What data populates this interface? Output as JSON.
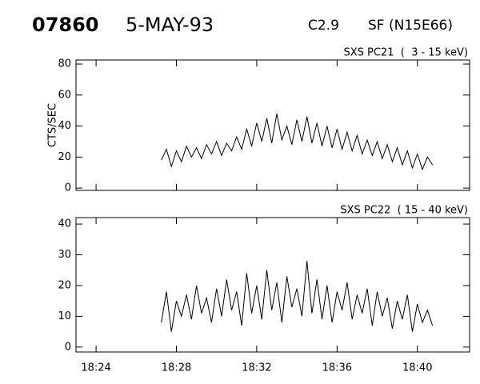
{
  "header": {
    "id": "07860",
    "date": "5-MAY-93",
    "class": "C2.9",
    "location": "SF (N15E66)"
  },
  "chart_data": [
    {
      "type": "line",
      "title": "SXS PC21  (  3 - 15 keV)",
      "ylabel": "CTS/SEC",
      "x": [
        27.25,
        27.5,
        27.75,
        28,
        28.25,
        28.5,
        28.75,
        29,
        29.25,
        29.5,
        29.75,
        30,
        30.25,
        30.5,
        30.75,
        31,
        31.25,
        31.5,
        31.75,
        32,
        32.25,
        32.5,
        32.75,
        33,
        33.25,
        33.5,
        33.75,
        34,
        34.25,
        34.5,
        34.75,
        35,
        35.25,
        35.5,
        35.75,
        36,
        36.25,
        36.5,
        36.75,
        37,
        37.25,
        37.5,
        37.75,
        38,
        38.25,
        38.5,
        38.75,
        39,
        39.25,
        39.5,
        39.75,
        40,
        40.25,
        40.5,
        40.75
      ],
      "series": [
        {
          "color": "#000000",
          "values": [
            18,
            25,
            14,
            24,
            17,
            27,
            20,
            26,
            19,
            28,
            22,
            30,
            21,
            29,
            24,
            33,
            25,
            38,
            27,
            42,
            30,
            45,
            29,
            48,
            31,
            40,
            28,
            44,
            30,
            46,
            29,
            42,
            27,
            40,
            26,
            38,
            25,
            36,
            24,
            34,
            22,
            31,
            21,
            30,
            19,
            28,
            17,
            26,
            15,
            24,
            13,
            22,
            12,
            20,
            15
          ]
        }
      ],
      "xlim": [
        23,
        42.6
      ],
      "ylim": [
        -1.5,
        82.6
      ],
      "yticks": [
        0,
        20,
        40,
        60,
        80
      ]
    },
    {
      "type": "line",
      "title": "SXS PC22  ( 15 - 40 keV)",
      "x": [
        27.25,
        27.5,
        27.75,
        28,
        28.25,
        28.5,
        28.75,
        29,
        29.25,
        29.5,
        29.75,
        30,
        30.25,
        30.5,
        30.75,
        31,
        31.25,
        31.5,
        31.75,
        32,
        32.25,
        32.5,
        32.75,
        33,
        33.25,
        33.5,
        33.75,
        34,
        34.25,
        34.5,
        34.75,
        35,
        35.25,
        35.5,
        35.75,
        36,
        36.25,
        36.5,
        36.75,
        37,
        37.25,
        37.5,
        37.75,
        38,
        38.25,
        38.5,
        38.75,
        39,
        39.25,
        39.5,
        39.75,
        40,
        40.25,
        40.5,
        40.75
      ],
      "series": [
        {
          "color": "#000000",
          "values": [
            8,
            18,
            5,
            15,
            10,
            17,
            9,
            20,
            11,
            16,
            8,
            19,
            10,
            22,
            12,
            18,
            7,
            24,
            11,
            20,
            9,
            25,
            12,
            21,
            8,
            23,
            13,
            19,
            10,
            28,
            11,
            22,
            9,
            20,
            8,
            18,
            12,
            21,
            9,
            17,
            11,
            19,
            7,
            18,
            10,
            16,
            6,
            15,
            9,
            17,
            5,
            14,
            8,
            12,
            7
          ]
        }
      ],
      "xlim": [
        23,
        42.6
      ],
      "ylim": [
        -1.6,
        42.1
      ],
      "yticks": [
        0,
        10,
        20,
        30,
        40
      ],
      "xticks": [
        {
          "value": 24,
          "label": "18:24"
        },
        {
          "value": 28,
          "label": "18:28"
        },
        {
          "value": 32,
          "label": "18:32"
        },
        {
          "value": 36,
          "label": "18:36"
        },
        {
          "value": 40,
          "label": "18:40"
        }
      ]
    }
  ]
}
